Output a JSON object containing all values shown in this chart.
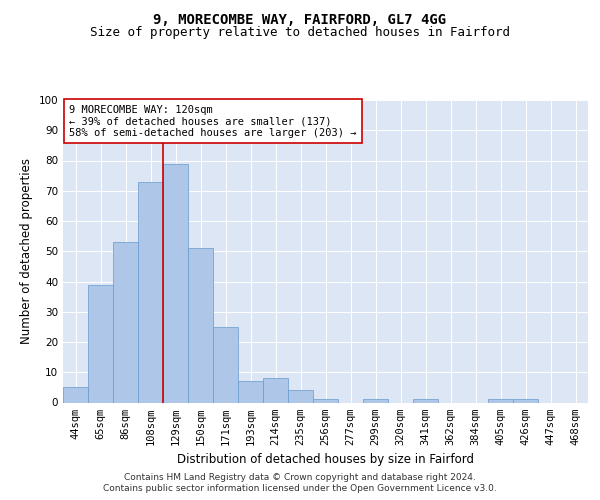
{
  "title_line1": "9, MORECOMBE WAY, FAIRFORD, GL7 4GG",
  "title_line2": "Size of property relative to detached houses in Fairford",
  "xlabel": "Distribution of detached houses by size in Fairford",
  "ylabel": "Number of detached properties",
  "categories": [
    "44sqm",
    "65sqm",
    "86sqm",
    "108sqm",
    "129sqm",
    "150sqm",
    "171sqm",
    "193sqm",
    "214sqm",
    "235sqm",
    "256sqm",
    "277sqm",
    "299sqm",
    "320sqm",
    "341sqm",
    "362sqm",
    "384sqm",
    "405sqm",
    "426sqm",
    "447sqm",
    "468sqm"
  ],
  "values": [
    5,
    39,
    53,
    73,
    79,
    51,
    25,
    7,
    8,
    4,
    1,
    0,
    1,
    0,
    1,
    0,
    0,
    1,
    1,
    0,
    0
  ],
  "bar_color": "#aec6e8",
  "bar_edge_color": "#6699cc",
  "vline_color": "#cc0000",
  "annotation_text": "9 MORECOMBE WAY: 120sqm\n← 39% of detached houses are smaller (137)\n58% of semi-detached houses are larger (203) →",
  "annotation_box_color": "#ffffff",
  "annotation_box_edge_color": "#cc0000",
  "ylim": [
    0,
    100
  ],
  "yticks": [
    0,
    10,
    20,
    30,
    40,
    50,
    60,
    70,
    80,
    90,
    100
  ],
  "plot_bg_color": "#dce6f5",
  "footer_line1": "Contains HM Land Registry data © Crown copyright and database right 2024.",
  "footer_line2": "Contains public sector information licensed under the Open Government Licence v3.0.",
  "title_fontsize": 10,
  "subtitle_fontsize": 9,
  "axis_label_fontsize": 8.5,
  "tick_fontsize": 7.5,
  "annotation_fontsize": 7.5,
  "footer_fontsize": 6.5
}
